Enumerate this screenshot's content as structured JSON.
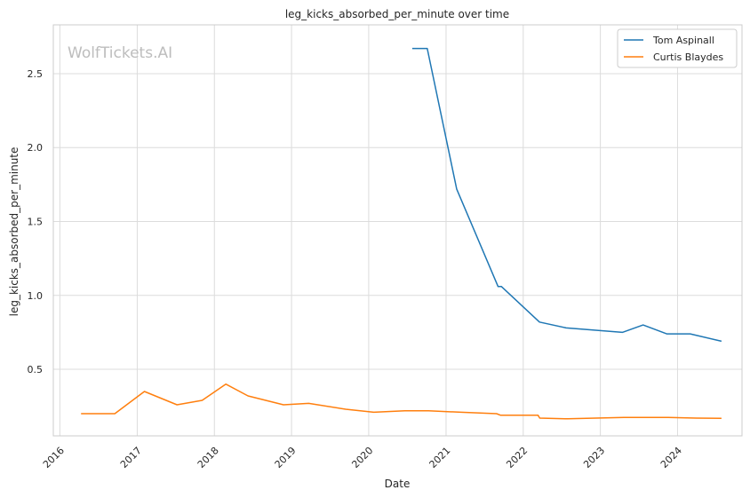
{
  "chart_data": {
    "type": "line",
    "title": "leg_kicks_absorbed_per_minute over time",
    "xlabel": "Date",
    "ylabel": "leg_kicks_absorbed_per_minute",
    "watermark": "WolfTickets.AI",
    "x_ticks": [
      "2016",
      "2017",
      "2018",
      "2019",
      "2020",
      "2021",
      "2022",
      "2023",
      "2024"
    ],
    "y_ticks": [
      "0.5",
      "1.0",
      "1.5",
      "2.0",
      "2.5"
    ],
    "xlim": [
      "2015-12-01",
      "2024-11-01"
    ],
    "ylim": [
      0.05,
      2.83
    ],
    "grid": true,
    "legend_position": "top-right",
    "series": [
      {
        "name": "Tom Aspinall",
        "color": "#1f77b4",
        "points": [
          [
            "2020-07-25",
            2.67
          ],
          [
            "2020-10-04",
            2.67
          ],
          [
            "2021-02-20",
            1.72
          ],
          [
            "2021-09-04",
            1.06
          ],
          [
            "2021-09-20",
            1.06
          ],
          [
            "2022-03-19",
            0.82
          ],
          [
            "2022-07-23",
            0.78
          ],
          [
            "2023-04-15",
            0.75
          ],
          [
            "2023-07-22",
            0.8
          ],
          [
            "2023-11-11",
            0.74
          ],
          [
            "2024-03-01",
            0.74
          ],
          [
            "2024-07-27",
            0.69
          ]
        ]
      },
      {
        "name": "Curtis Blaydes",
        "color": "#ff7f0e",
        "points": [
          [
            "2016-04-10",
            0.2
          ],
          [
            "2016-09-17",
            0.2
          ],
          [
            "2017-02-04",
            0.35
          ],
          [
            "2017-07-08",
            0.26
          ],
          [
            "2017-11-04",
            0.29
          ],
          [
            "2018-02-24",
            0.4
          ],
          [
            "2018-06-09",
            0.32
          ],
          [
            "2018-11-24",
            0.26
          ],
          [
            "2019-03-23",
            0.27
          ],
          [
            "2019-09-14",
            0.23
          ],
          [
            "2020-01-25",
            0.21
          ],
          [
            "2020-06-20",
            0.22
          ],
          [
            "2020-10-10",
            0.22
          ],
          [
            "2021-03-13",
            0.21
          ],
          [
            "2021-08-28",
            0.2
          ],
          [
            "2021-09-15",
            0.19
          ],
          [
            "2022-03-12",
            0.19
          ],
          [
            "2022-03-20",
            0.17
          ],
          [
            "2022-07-30",
            0.165
          ],
          [
            "2023-04-22",
            0.175
          ],
          [
            "2023-11-18",
            0.175
          ],
          [
            "2024-03-30",
            0.17
          ],
          [
            "2024-07-27",
            0.168
          ]
        ]
      }
    ]
  }
}
